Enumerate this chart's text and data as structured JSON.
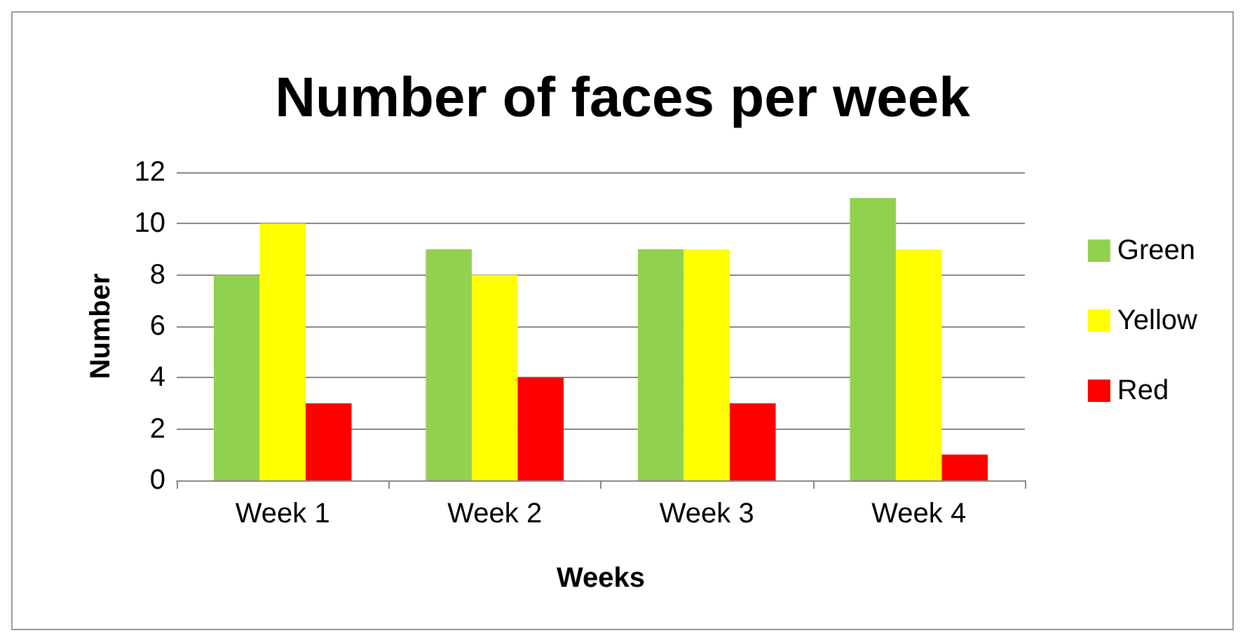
{
  "chart_data": {
    "type": "bar",
    "title": "Number of faces per week",
    "xlabel": "Weeks",
    "ylabel": "Number",
    "categories": [
      "Week 1",
      "Week 2",
      "Week 3",
      "Week 4"
    ],
    "series": [
      {
        "name": "Green",
        "color": "#92d050",
        "values": [
          8,
          9,
          9,
          11
        ]
      },
      {
        "name": "Yellow",
        "color": "#ffff00",
        "values": [
          10,
          8,
          9,
          9
        ]
      },
      {
        "name": "Red",
        "color": "#ff0000",
        "values": [
          3,
          4,
          3,
          1
        ]
      }
    ],
    "ylim": [
      0,
      12
    ],
    "yticks": [
      0,
      2,
      4,
      6,
      8,
      10,
      12
    ],
    "grid": "y",
    "legend": "right"
  }
}
